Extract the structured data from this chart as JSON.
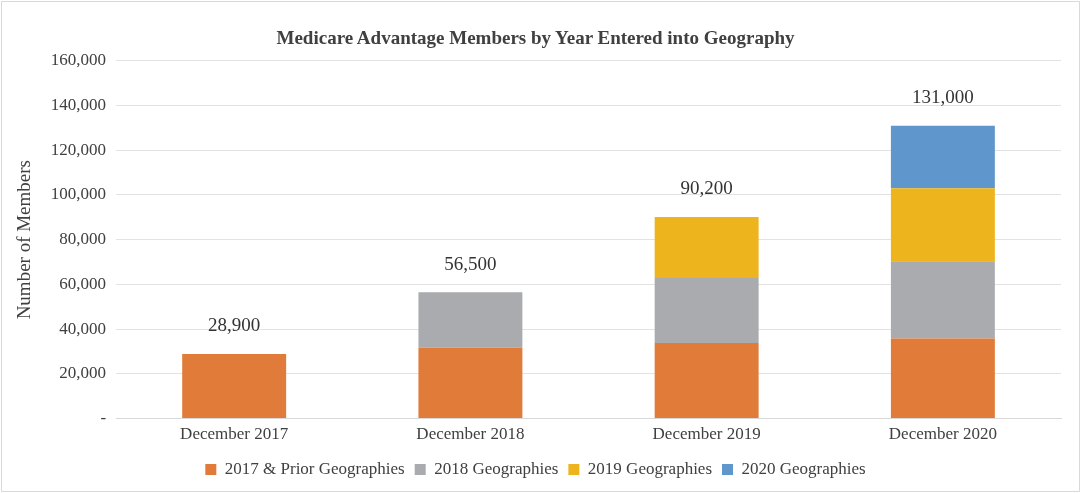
{
  "chart_data": {
    "type": "bar",
    "title": "Medicare Advantage Members by Year Entered into Geography",
    "ylabel": "Number of Members",
    "categories": [
      "December 2017",
      "December 2018",
      "December 2019",
      "December 2020"
    ],
    "stacked": true,
    "series": [
      {
        "name": "2017 & Prior Geographies",
        "color": "#e07b39",
        "values": [
          28900,
          31700,
          33800,
          35800
        ]
      },
      {
        "name": "2018 Geographies",
        "color": "#a9abae",
        "values": [
          null,
          24800,
          29100,
          34600
        ]
      },
      {
        "name": "2019 Geographies",
        "color": "#eeb41e",
        "values": [
          null,
          null,
          27300,
          32600
        ]
      },
      {
        "name": "2020 Geographies",
        "color": "#5f96cb",
        "values": [
          null,
          null,
          null,
          28000
        ]
      }
    ],
    "totals": [
      "28,900",
      "56,500",
      "90,200",
      "131,000"
    ],
    "ylim": [
      0,
      160000
    ],
    "yticks": [
      {
        "value": 0,
        "label": "-"
      },
      {
        "value": 20000,
        "label": "20,000"
      },
      {
        "value": 40000,
        "label": "40,000"
      },
      {
        "value": 60000,
        "label": "60,000"
      },
      {
        "value": 80000,
        "label": "80,000"
      },
      {
        "value": 100000,
        "label": "100,000"
      },
      {
        "value": 120000,
        "label": "120,000"
      },
      {
        "value": 140000,
        "label": "140,000"
      },
      {
        "value": 160000,
        "label": "160,000"
      }
    ],
    "grid": "y",
    "legend": "bottom"
  }
}
